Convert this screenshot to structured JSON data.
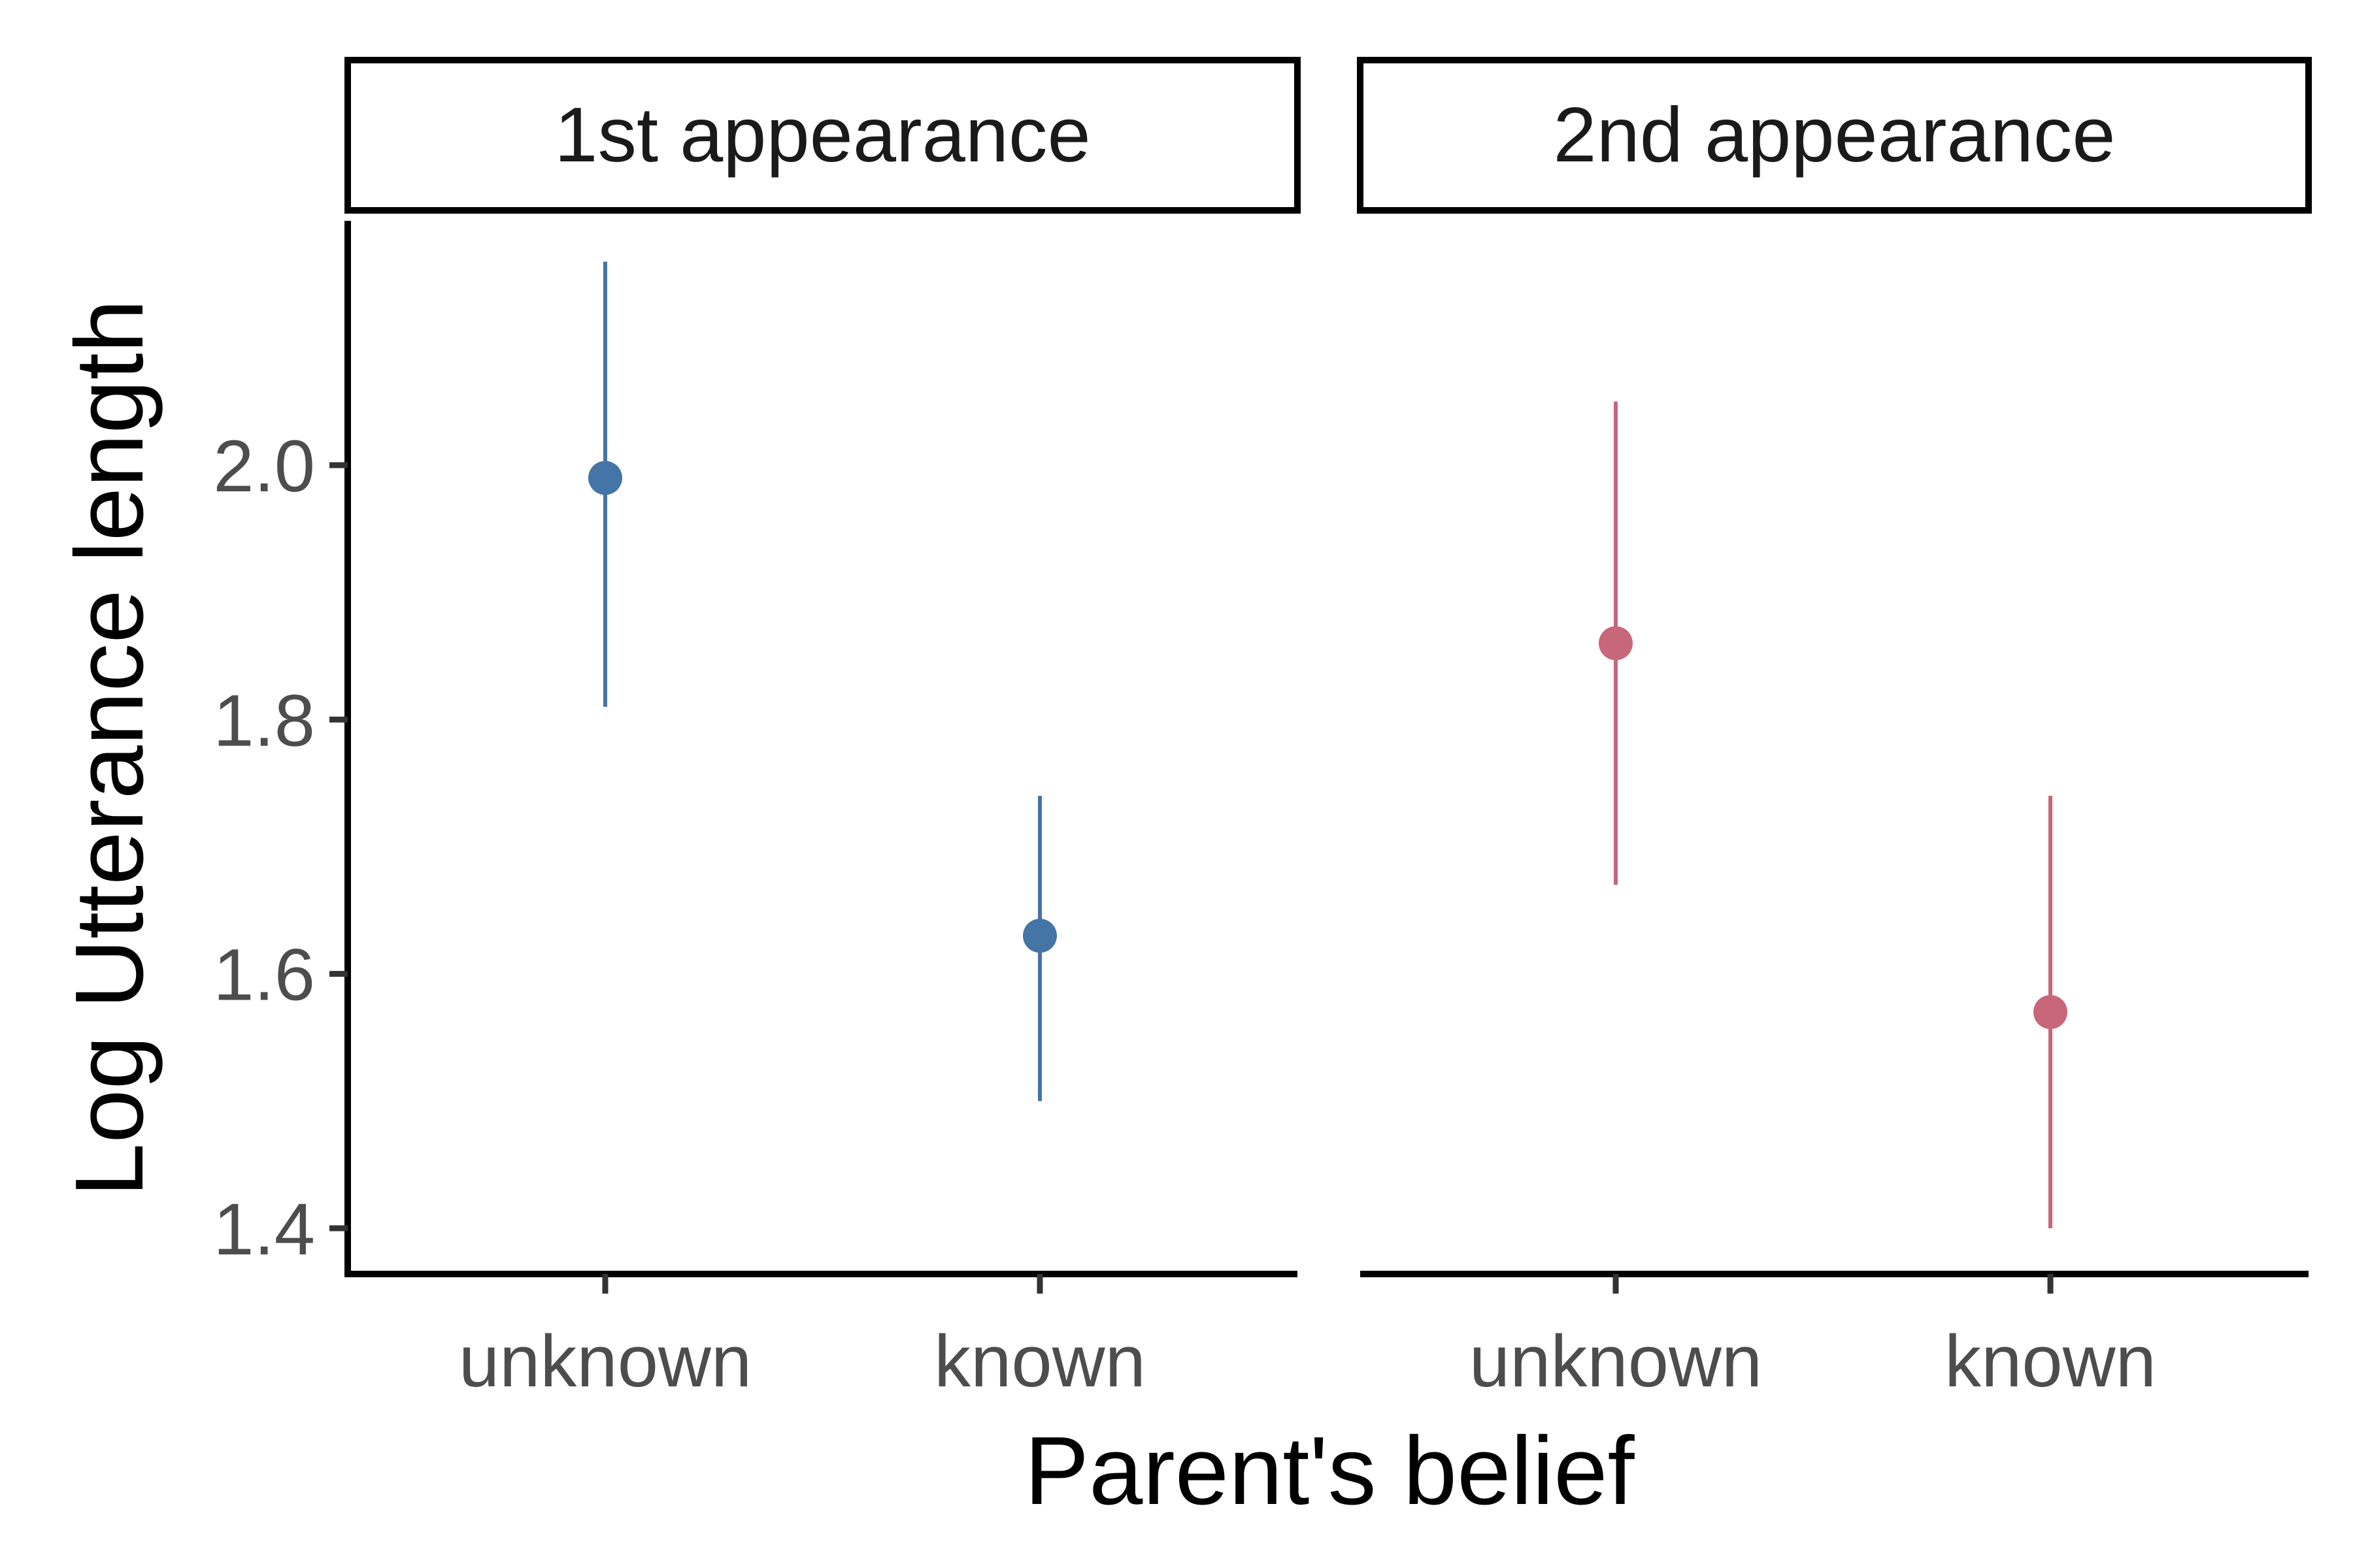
{
  "chart_data": {
    "type": "scatter",
    "subtype": "point-range, faceted",
    "xlabel": "Parent's belief",
    "ylabel": "Log Utterance length",
    "ylim": [
      1.36,
      2.18
    ],
    "yticks": [
      1.4,
      1.6,
      1.8,
      2.0
    ],
    "ytick_labels": [
      "1.4",
      "1.6",
      "1.8",
      "2.0"
    ],
    "categories": [
      "unknown",
      "known"
    ],
    "grid": false,
    "legend": "none",
    "facets": [
      {
        "title": "1st appearance",
        "color": "#4574a6",
        "points": [
          {
            "x": "unknown",
            "y": 1.99,
            "ymin": 1.81,
            "ymax": 2.16
          },
          {
            "x": "known",
            "y": 1.63,
            "ymin": 1.5,
            "ymax": 1.74
          }
        ]
      },
      {
        "title": "2nd appearance",
        "color": "#c8667a",
        "points": [
          {
            "x": "unknown",
            "y": 1.86,
            "ymin": 1.67,
            "ymax": 2.05
          },
          {
            "x": "known",
            "y": 1.57,
            "ymin": 1.4,
            "ymax": 1.74
          }
        ]
      }
    ]
  }
}
